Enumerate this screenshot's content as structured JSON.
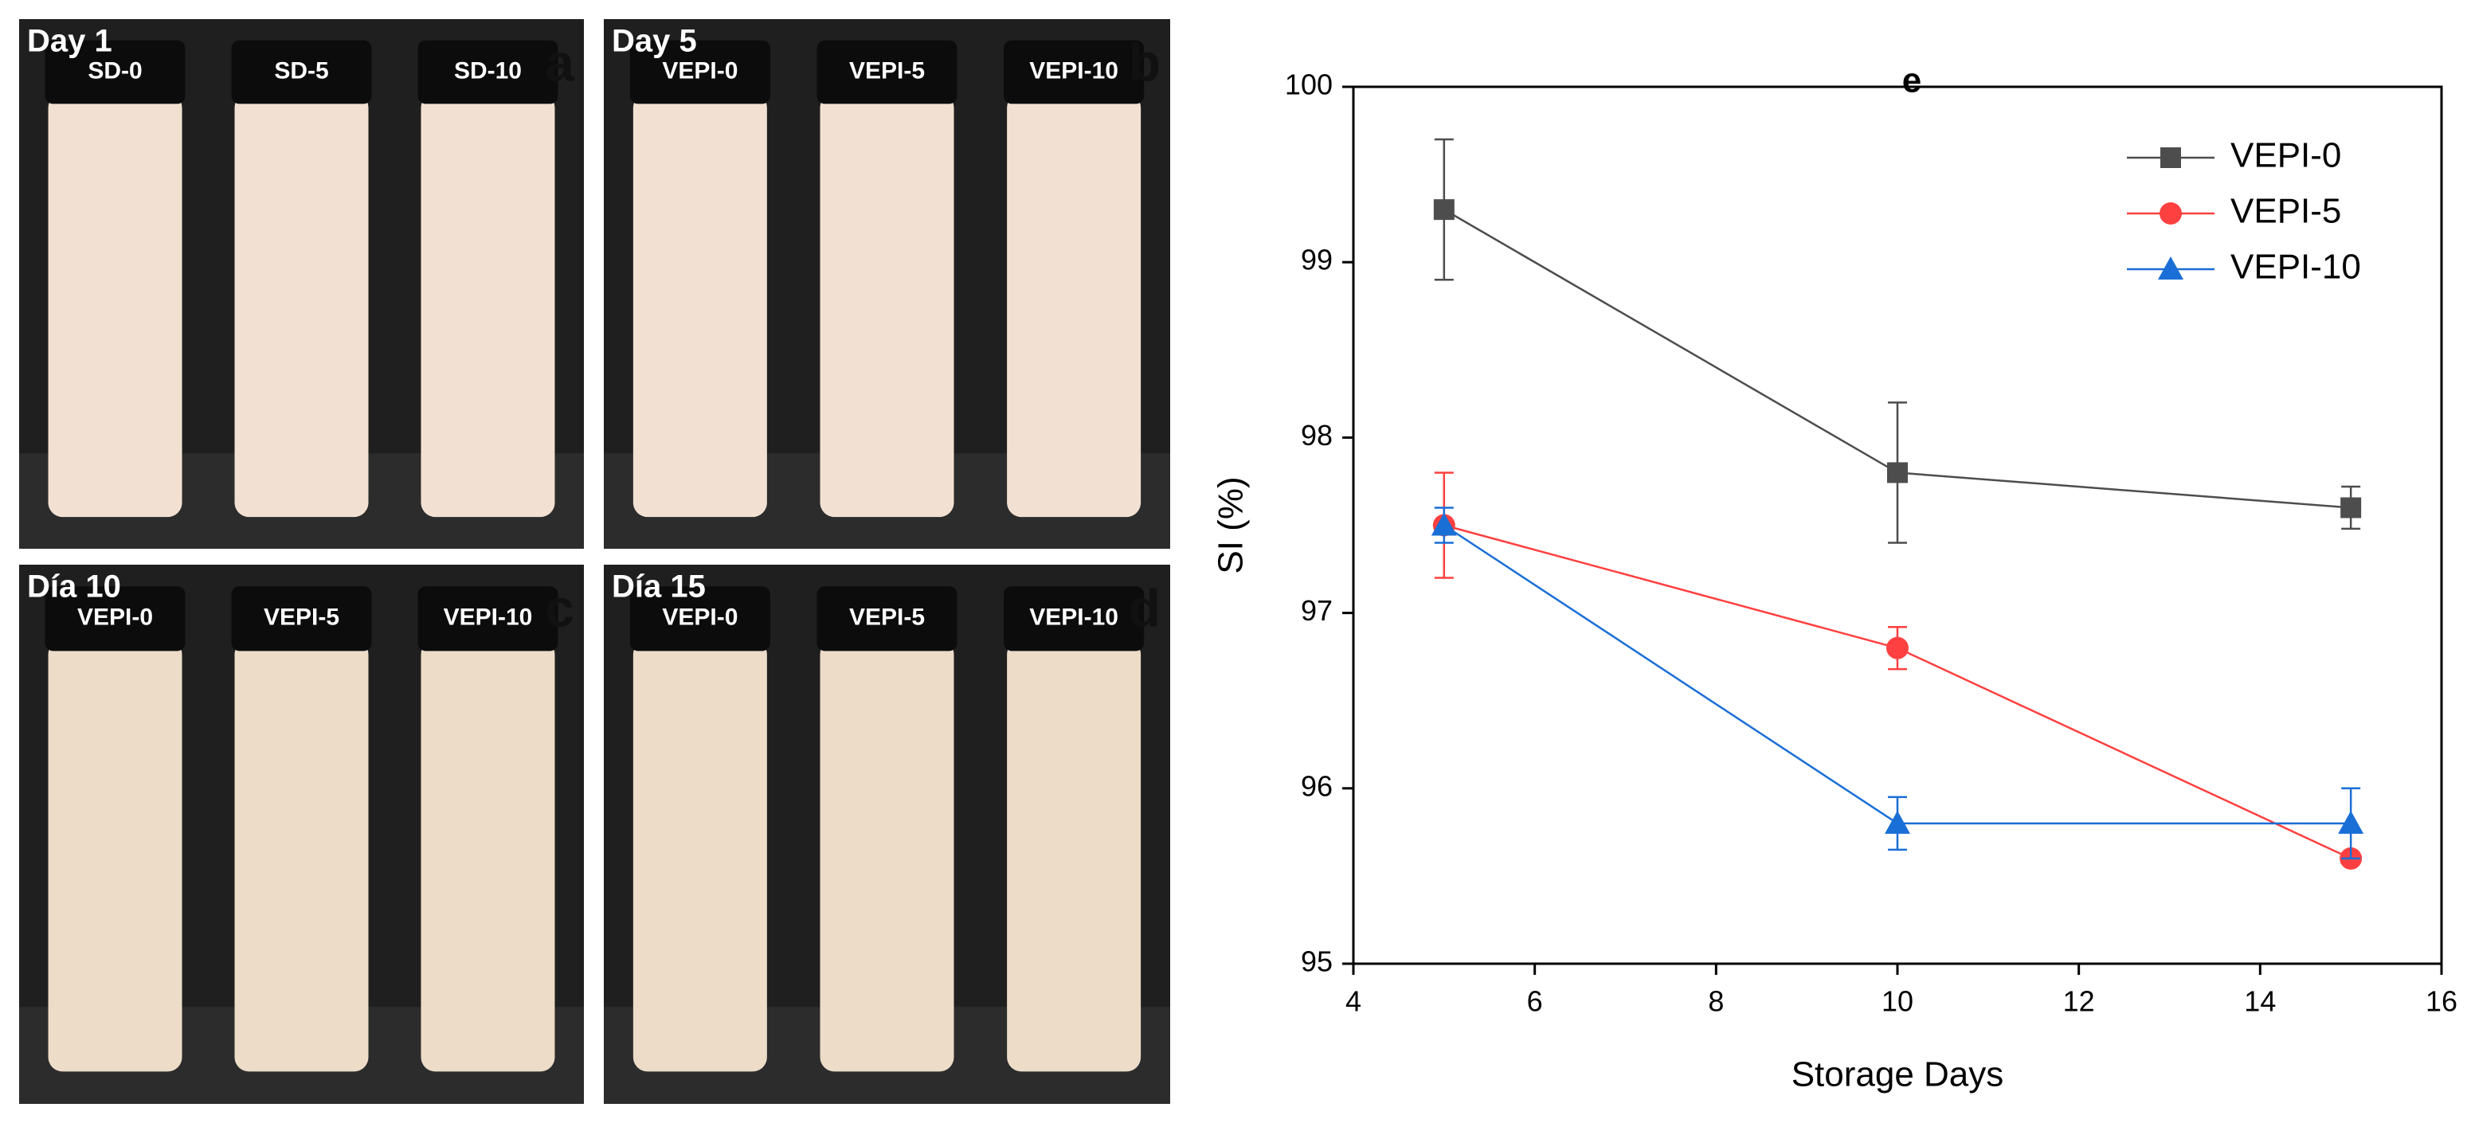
{
  "panels": [
    {
      "title": "Day 1",
      "letter": "a",
      "labels": [
        "SD-0",
        "SD-5",
        "SD-10"
      ]
    },
    {
      "title": "Day 5",
      "letter": "b",
      "labels": [
        "VEPI-0",
        "VEPI-5",
        "VEPI-10"
      ]
    },
    {
      "title": "Día 10",
      "letter": "c",
      "labels": [
        "VEPI-0",
        "VEPI-5",
        "VEPI-10"
      ]
    },
    {
      "title": "Día 15",
      "letter": "d",
      "labels": [
        "VEPI-0",
        "VEPI-5",
        "VEPI-10"
      ]
    }
  ],
  "chart_data": {
    "type": "line",
    "panel_label": "e",
    "x_label": "Storage Days",
    "y_label": "SI (%)",
    "x": [
      5,
      10,
      15
    ],
    "xlim": [
      4,
      16
    ],
    "xticks": [
      4,
      6,
      8,
      10,
      12,
      14,
      16
    ],
    "ylim": [
      95,
      100
    ],
    "yticks": [
      95,
      96,
      97,
      98,
      99,
      100
    ],
    "legend": "upper right",
    "series": [
      {
        "name": "VEPI-0",
        "color": "#4d4d4d",
        "marker": "square",
        "values": [
          99.3,
          97.8,
          97.6
        ],
        "errors": [
          0.4,
          0.4,
          0.12
        ]
      },
      {
        "name": "VEPI-5",
        "color": "#ff4040",
        "marker": "circle",
        "values": [
          97.5,
          96.8,
          95.6
        ],
        "errors": [
          0.3,
          0.12,
          0.02
        ]
      },
      {
        "name": "VEPI-10",
        "color": "#1a6fd6",
        "marker": "triangle",
        "values": [
          97.5,
          95.8,
          95.8
        ],
        "errors": [
          0.1,
          0.15,
          0.2
        ]
      }
    ]
  }
}
